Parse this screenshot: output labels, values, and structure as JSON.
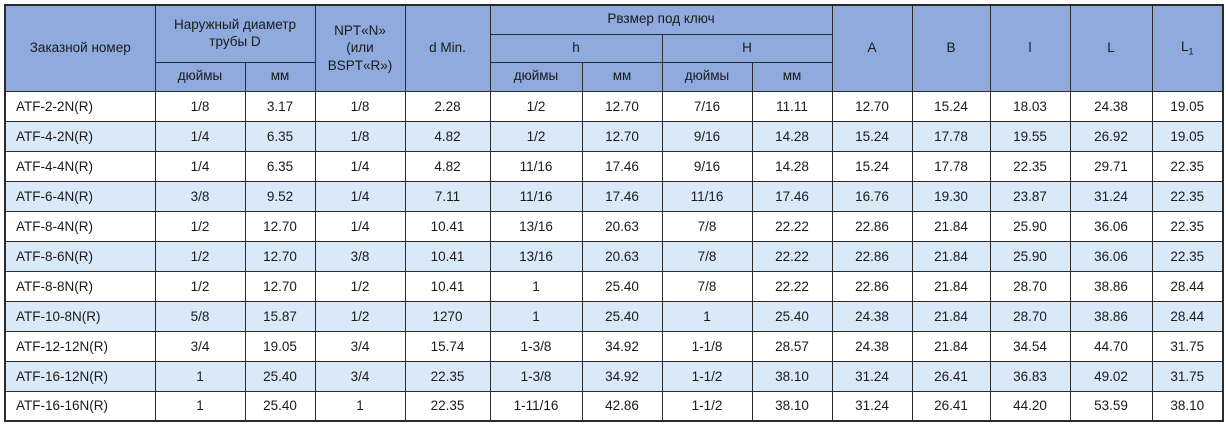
{
  "colors": {
    "header_bg": "#8faadc",
    "stripe_bg": "#d9e9f8",
    "border": "#2b2b2b",
    "text": "#1a1a1a"
  },
  "table": {
    "header": {
      "order_number": "Заказной номер",
      "outer_diameter": "Наружный диаметр трубы D",
      "npt": "NPT«N»\n(или\nBSPT«R»)",
      "d_min": "d Min.",
      "wrench_size": "Рвзмер под ключ",
      "h_lower": "h",
      "h_upper": "H",
      "inches": "дюймы",
      "mm": "мм",
      "col_A": "A",
      "col_B": "B",
      "col_l": "l",
      "col_L": "L",
      "col_L1_base": "L",
      "col_L1_sub": "1"
    },
    "rows": [
      [
        "ATF-2-2N(R)",
        "1/8",
        "3.17",
        "1/8",
        "2.28",
        "1/2",
        "12.70",
        "7/16",
        "11.11",
        "12.70",
        "15.24",
        "18.03",
        "24.38",
        "19.05"
      ],
      [
        "ATF-4-2N(R)",
        "1/4",
        "6.35",
        "1/8",
        "4.82",
        "1/2",
        "12.70",
        "9/16",
        "14.28",
        "15.24",
        "17.78",
        "19.55",
        "26.92",
        "19.05"
      ],
      [
        "ATF-4-4N(R)",
        "1/4",
        "6.35",
        "1/4",
        "4.82",
        "11/16",
        "17.46",
        "9/16",
        "14.28",
        "15.24",
        "17.78",
        "22.35",
        "29.71",
        "22.35"
      ],
      [
        "ATF-6-4N(R)",
        "3/8",
        "9.52",
        "1/4",
        "7.11",
        "11/16",
        "17.46",
        "11/16",
        "17.46",
        "16.76",
        "19.30",
        "23.87",
        "31.24",
        "22.35"
      ],
      [
        "ATF-8-4N(R)",
        "1/2",
        "12.70",
        "1/4",
        "10.41",
        "13/16",
        "20.63",
        "7/8",
        "22.22",
        "22.86",
        "21.84",
        "25.90",
        "36.06",
        "22.35"
      ],
      [
        "ATF-8-6N(R)",
        "1/2",
        "12.70",
        "3/8",
        "10.41",
        "13/16",
        "20.63",
        "7/8",
        "22.22",
        "22.86",
        "21.84",
        "25.90",
        "36.06",
        "22.35"
      ],
      [
        "ATF-8-8N(R)",
        "1/2",
        "12.70",
        "1/2",
        "10.41",
        "1",
        "25.40",
        "7/8",
        "22.22",
        "22.86",
        "21.84",
        "28.70",
        "38.86",
        "28.44"
      ],
      [
        "ATF-10-8N(R)",
        "5/8",
        "15.87",
        "1/2",
        "1270",
        "1",
        "25.40",
        "1",
        "25.40",
        "24.38",
        "21.84",
        "28.70",
        "38.86",
        "28.44"
      ],
      [
        "ATF-12-12N(R)",
        "3/4",
        "19.05",
        "3/4",
        "15.74",
        "1-3/8",
        "34.92",
        "1-1/8",
        "28.57",
        "24.38",
        "21.84",
        "34.54",
        "44.70",
        "31.75"
      ],
      [
        "ATF-16-12N(R)",
        "1",
        "25.40",
        "3/4",
        "22.35",
        "1-3/8",
        "34.92",
        "1-1/2",
        "38.10",
        "31.24",
        "26.41",
        "36.83",
        "49.02",
        "31.75"
      ],
      [
        "ATF-16-16N(R)",
        "1",
        "25.40",
        "1",
        "22.35",
        "1-11/16",
        "42.86",
        "1-1/2",
        "38.10",
        "31.24",
        "26.41",
        "44.20",
        "53.59",
        "38.10"
      ]
    ]
  }
}
